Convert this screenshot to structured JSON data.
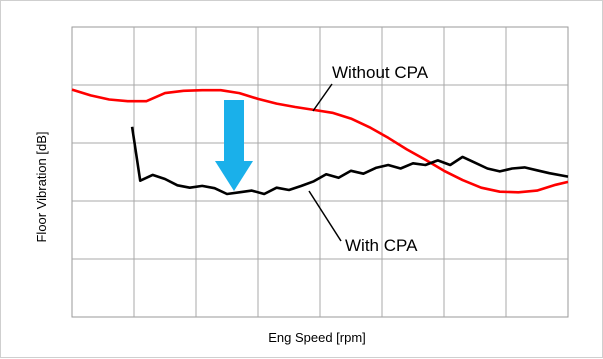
{
  "chart_data": {
    "type": "line",
    "xlabel": "Eng Speed [rpm]",
    "ylabel": "Floor Vibration [dB]",
    "xlim": [
      0,
      8
    ],
    "ylim": [
      0,
      5
    ],
    "grid": true,
    "tick_labels_shown": false,
    "series": [
      {
        "name": "Without CPA",
        "color": "#ff0000",
        "x": [
          0,
          0.3,
          0.6,
          0.9,
          1.2,
          1.5,
          1.8,
          2.1,
          2.4,
          2.7,
          3.0,
          3.3,
          3.6,
          3.9,
          4.2,
          4.5,
          4.8,
          5.1,
          5.4,
          5.7,
          6.0,
          6.3,
          6.6,
          6.9,
          7.2,
          7.5,
          7.8,
          8.0
        ],
        "values": [
          3.92,
          3.82,
          3.75,
          3.72,
          3.72,
          3.86,
          3.9,
          3.91,
          3.91,
          3.86,
          3.76,
          3.68,
          3.62,
          3.57,
          3.52,
          3.42,
          3.27,
          3.09,
          2.89,
          2.71,
          2.52,
          2.36,
          2.23,
          2.16,
          2.15,
          2.18,
          2.28,
          2.33
        ]
      },
      {
        "name": "With CPA",
        "color": "#000000",
        "x": [
          0.97,
          1.1,
          1.3,
          1.5,
          1.7,
          1.9,
          2.1,
          2.3,
          2.5,
          2.7,
          2.9,
          3.1,
          3.3,
          3.5,
          3.7,
          3.9,
          4.1,
          4.3,
          4.5,
          4.7,
          4.9,
          5.1,
          5.3,
          5.5,
          5.7,
          5.9,
          6.1,
          6.3,
          6.5,
          6.7,
          6.9,
          7.1,
          7.3,
          7.5,
          7.7,
          8.0
        ],
        "values": [
          3.28,
          2.35,
          2.45,
          2.38,
          2.27,
          2.23,
          2.26,
          2.22,
          2.12,
          2.15,
          2.18,
          2.12,
          2.23,
          2.19,
          2.26,
          2.34,
          2.46,
          2.4,
          2.52,
          2.47,
          2.57,
          2.62,
          2.56,
          2.65,
          2.62,
          2.7,
          2.62,
          2.76,
          2.66,
          2.56,
          2.51,
          2.56,
          2.58,
          2.53,
          2.48,
          2.42
        ]
      }
    ],
    "annotations": [
      {
        "text": "Without CPA",
        "color": "#ff0000"
      },
      {
        "text": "With CPA",
        "color": "#000000"
      }
    ],
    "arrow_color": "#1ab0ea"
  }
}
